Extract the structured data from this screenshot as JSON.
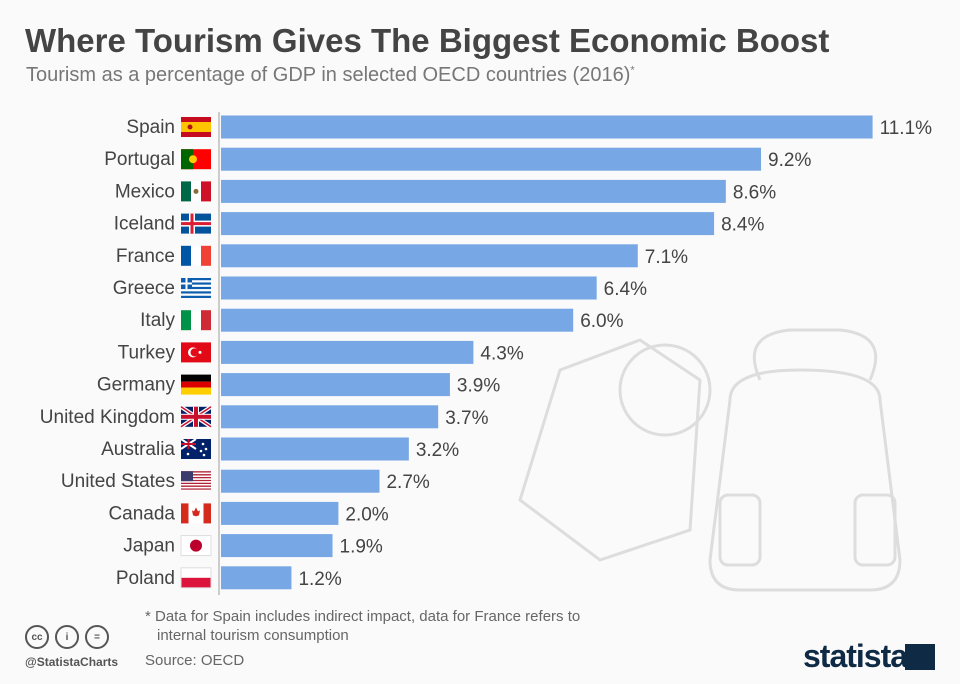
{
  "title": "Where Tourism Gives The Biggest Economic Boost",
  "subtitle": "Tourism as a percentage of GDP in selected OECD countries (2016)",
  "subtitle_mark": "*",
  "footnote_line1": "* Data for Spain includes indirect impact, data for France refers to",
  "footnote_line2": "internal tourism consumption",
  "source": "Source: OECD",
  "handle": "@StatistaCharts",
  "brand": "statista",
  "license_icons": [
    "cc",
    "i",
    "="
  ],
  "colors": {
    "bar": "#77a7e4",
    "title": "#444444",
    "text": "#444444"
  },
  "chart_data": {
    "type": "bar",
    "orientation": "horizontal",
    "categories": [
      "Spain",
      "Portugal",
      "Mexico",
      "Iceland",
      "France",
      "Greece",
      "Italy",
      "Turkey",
      "Germany",
      "United Kingdom",
      "Australia",
      "United States",
      "Canada",
      "Japan",
      "Poland"
    ],
    "values": [
      11.1,
      9.2,
      8.6,
      8.4,
      7.1,
      6.4,
      6.0,
      4.3,
      3.9,
      3.7,
      3.2,
      2.7,
      2.0,
      1.9,
      1.2
    ],
    "labels": [
      "11.1%",
      "9.2%",
      "8.6%",
      "8.4%",
      "7.1%",
      "6.4%",
      "6.0%",
      "4.3%",
      "3.9%",
      "3.7%",
      "3.2%",
      "2.7%",
      "2.0%",
      "1.9%",
      "1.2%"
    ],
    "unit": "%",
    "grid": false
  }
}
